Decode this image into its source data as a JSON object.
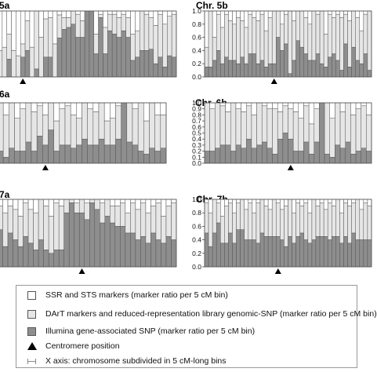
{
  "chart_data": [
    {
      "title": "5a",
      "type": "bar",
      "stacked": true,
      "ylim": [
        0,
        1
      ],
      "ticks": [],
      "centromere_bin": 5,
      "values": [
        [
          0.6,
          0.4,
          0
        ],
        [
          0.55,
          0.45,
          0
        ],
        [
          0.35,
          0.38,
          0.27
        ],
        [
          0.6,
          0.4,
          0
        ],
        [
          0.68,
          0.32,
          0
        ],
        [
          0.5,
          0.2,
          0.3
        ],
        [
          0.15,
          0.45,
          0.4
        ],
        [
          0.55,
          0.45,
          0
        ],
        [
          0,
          0.88,
          0.12
        ],
        [
          0.4,
          0.6,
          0
        ],
        [
          0.12,
          0.58,
          0.3
        ],
        [
          0.1,
          0.6,
          0.3
        ],
        [
          0.5,
          0.5,
          0
        ],
        [
          0.06,
          0.35,
          0.59
        ],
        [
          0.1,
          0.18,
          0.72
        ],
        [
          0.1,
          0.15,
          0.75
        ],
        [
          0,
          0.2,
          0.8
        ],
        [
          0.05,
          0.35,
          0.6
        ],
        [
          0.15,
          0.25,
          0.6
        ],
        [
          0,
          0,
          1
        ],
        [
          0,
          0,
          1
        ],
        [
          0.35,
          0.3,
          0.35
        ],
        [
          0.05,
          0.05,
          0.9
        ],
        [
          0.25,
          0.4,
          0.35
        ],
        [
          0.05,
          0.25,
          0.7
        ],
        [
          0.05,
          0.3,
          0.65
        ],
        [
          0.1,
          0.3,
          0.6
        ],
        [
          0.05,
          0.25,
          0.7
        ],
        [
          0.1,
          0.3,
          0.6
        ],
        [
          0.35,
          0.4,
          0.25
        ],
        [
          0.3,
          0.4,
          0.3
        ],
        [
          0,
          0.6,
          0.4
        ],
        [
          0.05,
          0.55,
          0.4
        ],
        [
          0.1,
          0.48,
          0.42
        ],
        [
          0.22,
          0.58,
          0.2
        ],
        [
          0.05,
          0.65,
          0.3
        ],
        [
          0.2,
          0.65,
          0.15
        ],
        [
          0.08,
          0.6,
          0.32
        ],
        [
          0.05,
          0.65,
          0.3
        ]
      ]
    },
    {
      "title": "Chr. 5b",
      "type": "bar",
      "stacked": true,
      "ylim": [
        0,
        1
      ],
      "ticks": [
        "0.0",
        "0.2",
        "0.4",
        "0.6",
        "0.8",
        "1.0"
      ],
      "centromere_bin": 17,
      "values": [
        [
          0.55,
          0.3,
          0.15
        ],
        [
          0,
          0.85,
          0.15
        ],
        [
          0.4,
          0.35,
          0.25
        ],
        [
          0.05,
          0.55,
          0.4
        ],
        [
          0.25,
          0.55,
          0.2
        ],
        [
          0.05,
          0.65,
          0.3
        ],
        [
          0.15,
          0.6,
          0.25
        ],
        [
          0.2,
          0.55,
          0.25
        ],
        [
          0.1,
          0.7,
          0.2
        ],
        [
          0.15,
          0.55,
          0.3
        ],
        [
          0.25,
          0.55,
          0.2
        ],
        [
          0.05,
          0.6,
          0.35
        ],
        [
          0.1,
          0.55,
          0.35
        ],
        [
          0.15,
          0.65,
          0.2
        ],
        [
          0.05,
          0.7,
          0.25
        ],
        [
          0.3,
          0.55,
          0.15
        ],
        [
          0.1,
          0.7,
          0.2
        ],
        [
          0,
          0.8,
          0.2
        ],
        [
          0,
          0.4,
          0.6
        ],
        [
          0.2,
          0.4,
          0.4
        ],
        [
          0.05,
          0.45,
          0.5
        ],
        [
          0,
          0.95,
          0.05
        ],
        [
          0.15,
          0.6,
          0.25
        ],
        [
          0,
          0.45,
          0.55
        ],
        [
          0,
          0.55,
          0.45
        ],
        [
          0.1,
          0.55,
          0.35
        ],
        [
          0.2,
          0.55,
          0.25
        ],
        [
          0,
          0.75,
          0.25
        ],
        [
          0.05,
          0.6,
          0.35
        ],
        [
          0,
          0.8,
          0.2
        ],
        [
          0.35,
          0.5,
          0.15
        ],
        [
          0.05,
          0.65,
          0.3
        ],
        [
          0.1,
          0.55,
          0.35
        ],
        [
          0.05,
          0.7,
          0.25
        ],
        [
          0.1,
          0.8,
          0.1
        ],
        [
          0.05,
          0.45,
          0.5
        ],
        [
          0.15,
          0.7,
          0.15
        ],
        [
          0,
          0.55,
          0.45
        ],
        [
          0.1,
          0.65,
          0.25
        ],
        [
          0.3,
          0.5,
          0.2
        ],
        [
          0.05,
          0.6,
          0.35
        ],
        [
          0,
          0.9,
          0.1
        ]
      ]
    },
    {
      "title": "6a",
      "type": "bar",
      "stacked": true,
      "ylim": [
        0,
        1
      ],
      "ticks": [],
      "centromere_bin": 8,
      "values": [
        [
          0,
          0.8,
          0.2
        ],
        [
          0.2,
          0.7,
          0.1
        ],
        [
          0,
          0.75,
          0.25
        ],
        [
          0.25,
          0.55,
          0.2
        ],
        [
          0.1,
          0.7,
          0.2
        ],
        [
          0,
          0.65,
          0.35
        ],
        [
          0.15,
          0.65,
          0.2
        ],
        [
          0.05,
          0.5,
          0.45
        ],
        [
          0.2,
          0.5,
          0.3
        ],
        [
          0,
          0.45,
          0.55
        ],
        [
          0.3,
          0.5,
          0.2
        ],
        [
          0.1,
          0.6,
          0.3
        ],
        [
          0.05,
          0.65,
          0.3
        ],
        [
          0.2,
          0.55,
          0.25
        ],
        [
          0.25,
          0.45,
          0.3
        ],
        [
          0,
          0.6,
          0.4
        ],
        [
          0.1,
          0.6,
          0.3
        ],
        [
          0.15,
          0.55,
          0.3
        ],
        [
          0,
          0.6,
          0.4
        ],
        [
          0.3,
          0.4,
          0.3
        ],
        [
          0.25,
          0.45,
          0.3
        ],
        [
          0.05,
          0.55,
          0.4
        ],
        [
          0,
          0,
          1
        ],
        [
          0,
          0.65,
          0.35
        ],
        [
          0.1,
          0.6,
          0.3
        ],
        [
          0,
          0.8,
          0.2
        ],
        [
          0.3,
          0.55,
          0.15
        ],
        [
          0,
          0.75,
          0.25
        ],
        [
          0.2,
          0.6,
          0.2
        ],
        [
          0.2,
          0.55,
          0.25
        ]
      ]
    },
    {
      "title": "Chr. 6b",
      "type": "bar",
      "stacked": true,
      "ylim": [
        0,
        1
      ],
      "ticks": [
        "0.0",
        "0.1",
        "0.2",
        "0.3",
        "0.4",
        "0.5",
        "0.6",
        "0.7",
        "0.8",
        "0.9",
        "1.0"
      ],
      "centromere_bin": 16,
      "values": [
        [
          0,
          0.8,
          0.2
        ],
        [
          0.1,
          0.7,
          0.2
        ],
        [
          0,
          0.75,
          0.25
        ],
        [
          0.05,
          0.65,
          0.3
        ],
        [
          0.15,
          0.55,
          0.3
        ],
        [
          0,
          0.8,
          0.2
        ],
        [
          0.1,
          0.6,
          0.3
        ],
        [
          0.15,
          0.6,
          0.25
        ],
        [
          0.05,
          0.55,
          0.4
        ],
        [
          0.2,
          0.55,
          0.25
        ],
        [
          0,
          0.7,
          0.3
        ],
        [
          0.05,
          0.6,
          0.35
        ],
        [
          0.1,
          0.65,
          0.25
        ],
        [
          0.1,
          0.75,
          0.15
        ],
        [
          0.15,
          0.45,
          0.4
        ],
        [
          0.05,
          0.45,
          0.5
        ],
        [
          0.1,
          0.5,
          0.4
        ],
        [
          0.15,
          0.65,
          0.2
        ],
        [
          0.25,
          0.55,
          0.2
        ],
        [
          0.05,
          0.6,
          0.35
        ],
        [
          0.35,
          0.5,
          0.15
        ],
        [
          0.1,
          0.55,
          0.35
        ],
        [
          0,
          0,
          1
        ],
        [
          0,
          0.85,
          0.15
        ],
        [
          0.25,
          0.65,
          0.1
        ],
        [
          0,
          0.7,
          0.3
        ],
        [
          0.15,
          0.6,
          0.25
        ],
        [
          0,
          0.65,
          0.35
        ],
        [
          0.2,
          0.65,
          0.15
        ],
        [
          0.1,
          0.7,
          0.2
        ],
        [
          0.05,
          0.7,
          0.25
        ],
        [
          0.2,
          0.6,
          0.2
        ]
      ]
    },
    {
      "title": "7a",
      "type": "bar",
      "stacked": true,
      "ylim": [
        0,
        1
      ],
      "ticks": [],
      "centromere_bin": 16,
      "values": [
        [
          0.1,
          0.35,
          0.55
        ],
        [
          0.2,
          0.5,
          0.3
        ],
        [
          0.1,
          0.4,
          0.5
        ],
        [
          0.15,
          0.45,
          0.4
        ],
        [
          0.25,
          0.45,
          0.3
        ],
        [
          0.05,
          0.5,
          0.45
        ],
        [
          0.15,
          0.5,
          0.35
        ],
        [
          0.2,
          0.55,
          0.25
        ],
        [
          0,
          0.6,
          0.4
        ],
        [
          0.1,
          0.65,
          0.25
        ],
        [
          0.25,
          0.55,
          0.2
        ],
        [
          0.05,
          0.7,
          0.25
        ],
        [
          0.1,
          0.65,
          0.25
        ],
        [
          0,
          0.2,
          0.8
        ],
        [
          0,
          0.05,
          0.95
        ],
        [
          0.05,
          0.15,
          0.8
        ],
        [
          0,
          0.2,
          0.8
        ],
        [
          0.05,
          0.25,
          0.7
        ],
        [
          0,
          0.05,
          0.95
        ],
        [
          0,
          0.15,
          0.85
        ],
        [
          0.05,
          0.3,
          0.65
        ],
        [
          0,
          0.25,
          0.75
        ],
        [
          0.1,
          0.25,
          0.65
        ],
        [
          0.1,
          0.3,
          0.6
        ],
        [
          0.05,
          0.35,
          0.6
        ],
        [
          0.2,
          0.3,
          0.5
        ],
        [
          0.05,
          0.45,
          0.5
        ],
        [
          0.15,
          0.45,
          0.4
        ],
        [
          0.05,
          0.5,
          0.45
        ],
        [
          0.2,
          0.45,
          0.35
        ],
        [
          0.1,
          0.4,
          0.5
        ],
        [
          0.05,
          0.55,
          0.4
        ],
        [
          0.25,
          0.4,
          0.35
        ],
        [
          0.1,
          0.45,
          0.45
        ],
        [
          0.05,
          0.55,
          0.4
        ]
      ]
    },
    {
      "title": "Chr. 7b",
      "type": "bar",
      "stacked": true,
      "ylim": [
        0,
        1
      ],
      "ticks": [
        "0.0",
        "0.2",
        "0.4",
        "0.6",
        "0.8",
        "1.0"
      ],
      "centromere_bin": 18,
      "values": [
        [
          0.05,
          0.45,
          0.5
        ],
        [
          0.2,
          0.5,
          0.3
        ],
        [
          0,
          0.5,
          0.5
        ],
        [
          0.05,
          0.3,
          0.65
        ],
        [
          0.25,
          0.4,
          0.35
        ],
        [
          0.1,
          0.55,
          0.35
        ],
        [
          0.05,
          0.45,
          0.5
        ],
        [
          0.2,
          0.45,
          0.35
        ],
        [
          0.05,
          0.4,
          0.55
        ],
        [
          0,
          0.45,
          0.55
        ],
        [
          0.15,
          0.45,
          0.4
        ],
        [
          0.05,
          0.55,
          0.4
        ],
        [
          0.2,
          0.4,
          0.4
        ],
        [
          0.05,
          0.6,
          0.35
        ],
        [
          0,
          0.5,
          0.5
        ],
        [
          0.1,
          0.45,
          0.45
        ],
        [
          0.15,
          0.4,
          0.45
        ],
        [
          0,
          0.55,
          0.45
        ],
        [
          0.05,
          0.5,
          0.45
        ],
        [
          0.15,
          0.45,
          0.4
        ],
        [
          0.1,
          0.6,
          0.3
        ],
        [
          0,
          0.55,
          0.45
        ],
        [
          0.2,
          0.45,
          0.35
        ],
        [
          0.05,
          0.5,
          0.45
        ],
        [
          0.1,
          0.4,
          0.5
        ],
        [
          0.05,
          0.55,
          0.4
        ],
        [
          0.2,
          0.45,
          0.35
        ],
        [
          0,
          0.6,
          0.4
        ],
        [
          0.1,
          0.45,
          0.45
        ],
        [
          0.05,
          0.5,
          0.45
        ],
        [
          0.15,
          0.4,
          0.45
        ],
        [
          0.05,
          0.55,
          0.4
        ],
        [
          0.1,
          0.45,
          0.45
        ],
        [
          0,
          0.55,
          0.45
        ],
        [
          0.2,
          0.45,
          0.35
        ],
        [
          0.05,
          0.5,
          0.45
        ],
        [
          0.1,
          0.55,
          0.35
        ],
        [
          0.05,
          0.45,
          0.5
        ],
        [
          0,
          0.6,
          0.4
        ],
        [
          0.15,
          0.45,
          0.4
        ],
        [
          0.05,
          0.55,
          0.4
        ],
        [
          0.1,
          0.5,
          0.4
        ]
      ]
    }
  ],
  "series": [
    {
      "name": "SSR and STS markers (marker ratio per 5 cM bin)",
      "color": "#ffffff"
    },
    {
      "name": "DArT markers and reduced-representation library genomic-SNP  (marker ratio per 5 cM bin)",
      "color": "#e6e6e6"
    },
    {
      "name": "Illumina gene-associated SNP (marker ratio per 5 cM bin)",
      "color": "#8e8e8e"
    }
  ],
  "legend": {
    "centromere": "Centromere position",
    "xaxis": "X axis: chromosome subdivided in 5 cM-long bins"
  }
}
